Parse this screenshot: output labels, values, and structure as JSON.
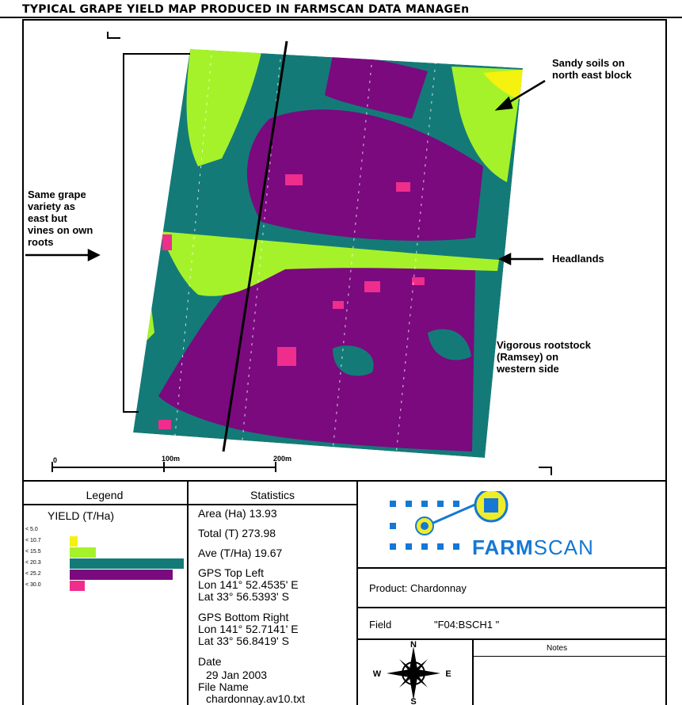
{
  "title": "TYPICAL GRAPE YIELD MAP PRODUCED IN FARMSCAN DATA MANAGEn",
  "annotations": {
    "sandy": [
      "Sandy soils on",
      "north east block"
    ],
    "same_grape": [
      "Same grape",
      "variety as",
      "east but",
      "vines on own",
      "roots"
    ],
    "headlands": "Headlands",
    "vigorous": [
      "Vigorous rootstock",
      "(Ramsey) on",
      "western side"
    ]
  },
  "scale": {
    "labels": [
      "0",
      "100m",
      "200m"
    ]
  },
  "colors": {
    "teal": "#147a78",
    "purple": "#7a0a7e",
    "lime": "#a6f22a",
    "yellow": "#f4f20e",
    "pink": "#ee2d8c",
    "farmscan_blue": "#1478d4",
    "logo_yellow": "#f0ec2a"
  },
  "legend": {
    "header": "Legend",
    "title": "YIELD (T/Ha)",
    "rows": [
      {
        "label": "< 5.0",
        "color": "#ffffff",
        "fraction": 0.0
      },
      {
        "label": "< 10.7",
        "color": "#f4f20e",
        "fraction": 0.07
      },
      {
        "label": "< 15.5",
        "color": "#a6f22a",
        "fraction": 0.23
      },
      {
        "label": "< 20.3",
        "color": "#147a78",
        "fraction": 1.0
      },
      {
        "label": "< 25.2",
        "color": "#7a0a7e",
        "fraction": 0.9
      },
      {
        "label": "< 30.0",
        "color": "#ee2d8c",
        "fraction": 0.13
      }
    ]
  },
  "statistics": {
    "header": "Statistics",
    "area": "Area (Ha) 13.93",
    "total": "Total (T) 273.98",
    "ave": "Ave (T/Ha) 19.67",
    "gps_top_left": {
      "label": "GPS Top Left",
      "lon": "Lon 141° 52.4535' E",
      "lat": "Lat 33° 56.5393' S"
    },
    "gps_bottom_right": {
      "label": "GPS Bottom Right",
      "lon": "Lon 141° 52.7141' E",
      "lat": "Lat 33° 56.8419' S"
    },
    "date_label": "Date",
    "date": "29 Jan 2003",
    "file_label": "File Name",
    "file_name": "chardonnay.av10.txt"
  },
  "brand": {
    "farm": "FARM",
    "scan": "SCAN"
  },
  "info": {
    "product": "Product: Chardonnay",
    "field_label": "Field",
    "field_value": "\"F04:BSCH1 \"",
    "notes": "Notes"
  },
  "compass": {
    "n": "N",
    "s": "S",
    "e": "E",
    "w": "W"
  }
}
